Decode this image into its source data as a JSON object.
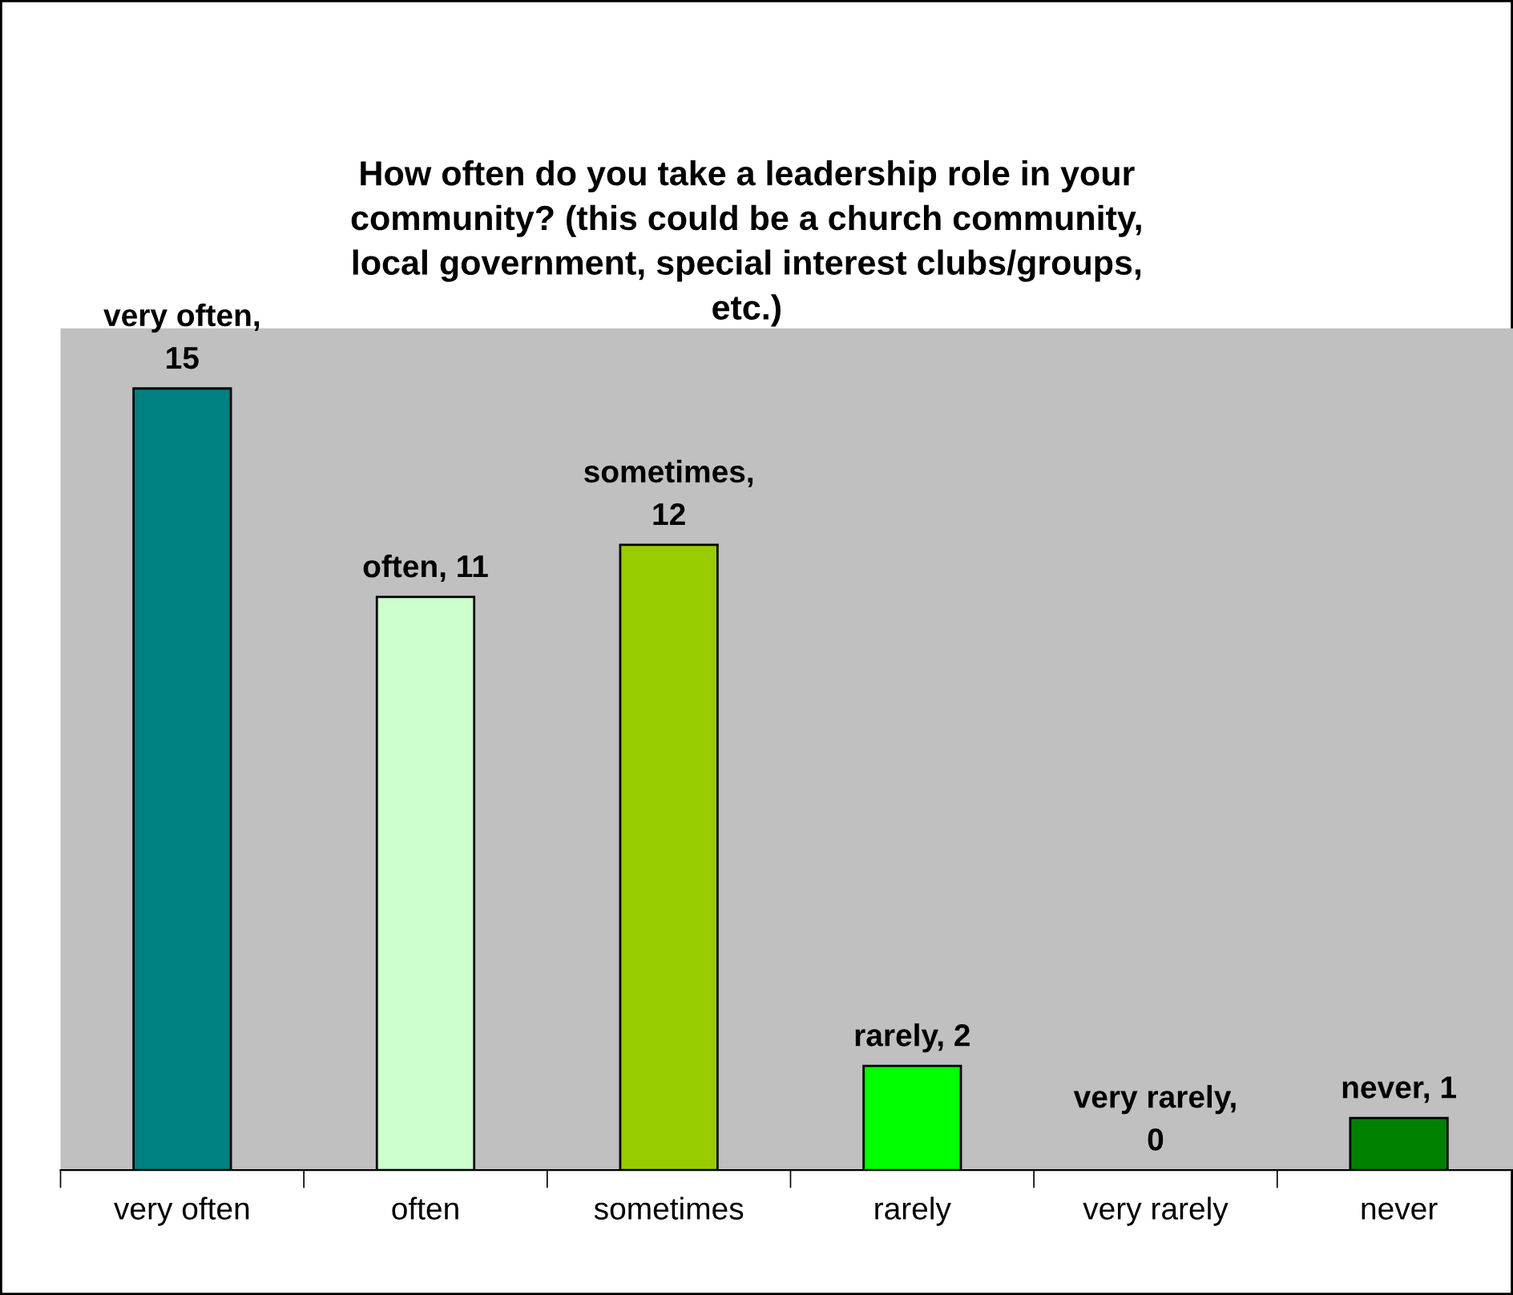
{
  "chart_data": {
    "type": "bar",
    "title": "How often do you take a leadership role in your\ncommunity? (this could be a church community,\nlocal government, special interest clubs/groups,\netc.)",
    "categories": [
      "very often",
      "often",
      "sometimes",
      "rarely",
      "very rarely",
      "never"
    ],
    "values": [
      15,
      11,
      12,
      2,
      0,
      1
    ],
    "colors": [
      "#008080",
      "#ccffcc",
      "#99cc00",
      "#00ff00",
      null,
      "#008000"
    ],
    "value_labels": [
      "very often,\n15",
      "often, 11",
      "sometimes,\n12",
      "rarely, 2",
      "very rarely,\n0",
      "never, 1"
    ],
    "grid": false,
    "legend": false
  }
}
